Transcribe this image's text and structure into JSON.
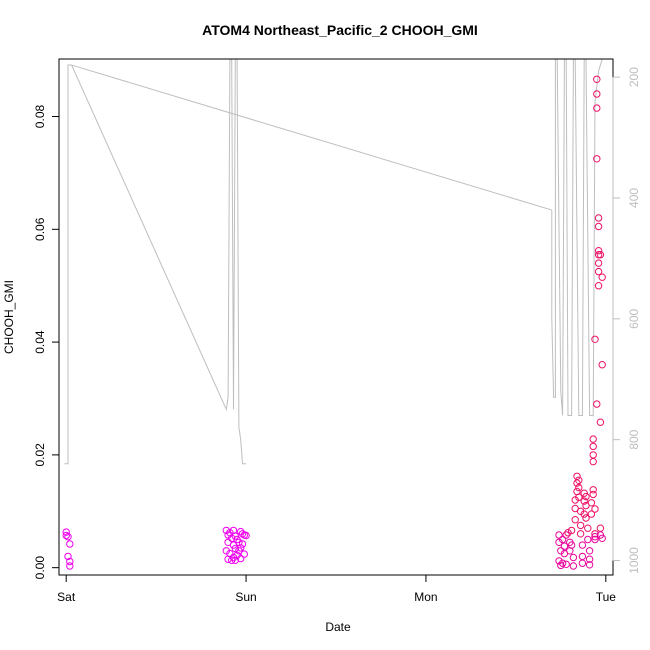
{
  "chart_data": {
    "type": "scatter",
    "title": "ATOM4 Northeast_Pacific_2 CHOOH_GMI",
    "xlabel": "Date",
    "ylabel": "CHOOH_GMI",
    "x_ticks": [
      {
        "day": 0,
        "label": "Sat"
      },
      {
        "day": 1,
        "label": "Sun"
      },
      {
        "day": 2,
        "label": "Mon"
      },
      {
        "day": 3,
        "label": "Tue"
      }
    ],
    "y_ticks": [
      {
        "value": 0.0,
        "label": "0.00"
      },
      {
        "value": 0.02,
        "label": "0.02"
      },
      {
        "value": 0.04,
        "label": "0.04"
      },
      {
        "value": 0.06,
        "label": "0.06"
      },
      {
        "value": 0.08,
        "label": "0.08"
      }
    ],
    "y2_ticks": [
      {
        "value": 200,
        "label": "200"
      },
      {
        "value": 400,
        "label": "400"
      },
      {
        "value": 600,
        "label": "600"
      },
      {
        "value": 800,
        "label": "800"
      },
      {
        "value": 1000,
        "label": "1000"
      }
    ],
    "xlim": [
      -0.04,
      3.04
    ],
    "ylim": [
      -0.0013,
      0.0902
    ],
    "y2lim": [
      1024,
      170
    ],
    "colors": {
      "pressure_line": "#bebebe",
      "points_low": "#ee00ee",
      "points_high": "#ee1166"
    },
    "series": [
      {
        "kind": "points",
        "points": [
          [
            0.0,
            0.0063
          ],
          [
            0.01,
            0.0055
          ],
          [
            0.0,
            0.0057
          ],
          [
            0.02,
            0.0042
          ],
          [
            0.01,
            0.002
          ],
          [
            0.02,
            0.0011
          ],
          [
            0.02,
            0.0003
          ],
          [
            0.89,
            0.0066
          ],
          [
            0.9,
            0.0058
          ],
          [
            0.91,
            0.0062
          ],
          [
            0.9,
            0.0045
          ],
          [
            0.92,
            0.0052
          ],
          [
            0.89,
            0.003
          ],
          [
            0.91,
            0.0025
          ],
          [
            0.9,
            0.0015
          ],
          [
            0.92,
            0.0013
          ],
          [
            0.93,
            0.0066
          ],
          [
            0.94,
            0.0056
          ],
          [
            0.93,
            0.004
          ],
          [
            0.94,
            0.0034
          ],
          [
            0.95,
            0.0022
          ],
          [
            0.93,
            0.0018
          ],
          [
            0.94,
            0.0013
          ],
          [
            0.95,
            0.005
          ],
          [
            0.96,
            0.0045
          ],
          [
            0.97,
            0.0064
          ],
          [
            0.98,
            0.006
          ],
          [
            0.96,
            0.003
          ],
          [
            0.97,
            0.0035
          ],
          [
            0.98,
            0.0042
          ],
          [
            0.99,
            0.0058
          ],
          [
            1.0,
            0.0057
          ],
          [
            0.99,
            0.0024
          ],
          [
            0.97,
            0.0016
          ],
          [
            2.74,
            0.0058
          ],
          [
            2.74,
            0.0045
          ],
          [
            2.75,
            0.003
          ],
          [
            2.74,
            0.0012
          ],
          [
            2.76,
            0.0008
          ],
          [
            2.75,
            0.0004
          ],
          [
            2.76,
            0.005
          ],
          [
            2.77,
            0.0038
          ],
          [
            2.77,
            0.0025
          ],
          [
            2.78,
            0.0006
          ],
          [
            2.78,
            0.0058
          ],
          [
            2.79,
            0.0062
          ],
          [
            2.8,
            0.0045
          ],
          [
            2.8,
            0.003
          ],
          [
            2.81,
            0.0066
          ],
          [
            2.81,
            0.004
          ],
          [
            2.82,
            0.0018
          ],
          [
            2.82,
            0.0003
          ],
          [
            2.83,
            0.0085
          ],
          [
            2.83,
            0.0105
          ],
          [
            2.83,
            0.012
          ],
          [
            2.84,
            0.0135
          ],
          [
            2.84,
            0.015
          ],
          [
            2.84,
            0.0162
          ],
          [
            2.85,
            0.0155
          ],
          [
            2.85,
            0.0142
          ],
          [
            2.85,
            0.0125
          ],
          [
            2.86,
            0.01
          ],
          [
            2.86,
            0.0075
          ],
          [
            2.86,
            0.006
          ],
          [
            2.87,
            0.004
          ],
          [
            2.87,
            0.002
          ],
          [
            2.87,
            0.0008
          ],
          [
            2.88,
            0.0132
          ],
          [
            2.88,
            0.0118
          ],
          [
            2.88,
            0.0095
          ],
          [
            2.89,
            0.0126
          ],
          [
            2.89,
            0.011
          ],
          [
            2.89,
            0.0088
          ],
          [
            2.9,
            0.007
          ],
          [
            2.9,
            0.005
          ],
          [
            2.91,
            0.003
          ],
          [
            2.91,
            0.0015
          ],
          [
            2.91,
            0.0005
          ],
          [
            2.92,
            0.0115
          ],
          [
            2.92,
            0.0095
          ],
          [
            2.93,
            0.013
          ],
          [
            2.93,
            0.0138
          ],
          [
            2.93,
            0.02
          ],
          [
            2.93,
            0.0228
          ],
          [
            2.93,
            0.0215
          ],
          [
            2.93,
            0.0188
          ],
          [
            2.94,
            0.0104
          ],
          [
            2.94,
            0.006
          ],
          [
            2.94,
            0.0055
          ],
          [
            2.94,
            0.005
          ],
          [
            2.94,
            0.0405
          ],
          [
            2.95,
            0.029
          ],
          [
            2.95,
            0.0866
          ],
          [
            2.95,
            0.084
          ],
          [
            2.95,
            0.0815
          ],
          [
            2.95,
            0.0725
          ],
          [
            2.96,
            0.062
          ],
          [
            2.96,
            0.0605
          ],
          [
            2.96,
            0.0562
          ],
          [
            2.96,
            0.0555
          ],
          [
            2.96,
            0.054
          ],
          [
            2.96,
            0.0525
          ],
          [
            2.96,
            0.05
          ],
          [
            2.97,
            0.0555
          ],
          [
            2.97,
            0.0258
          ],
          [
            2.97,
            0.007
          ],
          [
            2.97,
            0.0058
          ],
          [
            2.98,
            0.0515
          ],
          [
            2.98,
            0.036
          ],
          [
            2.98,
            0.0052
          ]
        ]
      },
      {
        "kind": "line",
        "name": "",
        "axis": "right",
        "segments": [
          [
            [
              -0.01,
              840
            ],
            [
              0.01,
              840
            ],
            [
              0.01,
              180
            ],
            [
              0.03,
              180
            ],
            [
              0.89,
              750
            ],
            [
              0.9,
              730
            ],
            [
              0.91,
              170
            ],
            [
              0.92,
              170
            ],
            [
              0.93,
              750
            ],
            [
              0.94,
              170
            ],
            [
              0.95,
              170
            ],
            [
              0.96,
              780
            ],
            [
              0.97,
              800
            ],
            [
              0.98,
              840
            ],
            [
              1.0,
              840
            ]
          ],
          [
            [
              2.7,
              420
            ],
            [
              2.7,
              600
            ],
            [
              2.71,
              730
            ],
            [
              2.72,
              730
            ],
            [
              2.72,
              170
            ],
            [
              2.73,
              170
            ],
            [
              2.74,
              450
            ],
            [
              2.75,
              720
            ],
            [
              2.76,
              760
            ],
            [
              2.77,
              170
            ],
            [
              2.78,
              170
            ],
            [
              2.79,
              760
            ],
            [
              2.81,
              760
            ],
            [
              2.82,
              170
            ],
            [
              2.83,
              170
            ],
            [
              2.85,
              760
            ],
            [
              2.87,
              760
            ],
            [
              2.88,
              170
            ],
            [
              2.89,
              170
            ],
            [
              2.91,
              760
            ],
            [
              2.93,
              760
            ],
            [
              2.94,
              240
            ],
            [
              2.96,
              190
            ],
            [
              2.98,
              170
            ]
          ]
        ],
        "long_diagonal": [
          [
            0.03,
            180
          ],
          [
            2.7,
            420
          ]
        ]
      }
    ]
  }
}
